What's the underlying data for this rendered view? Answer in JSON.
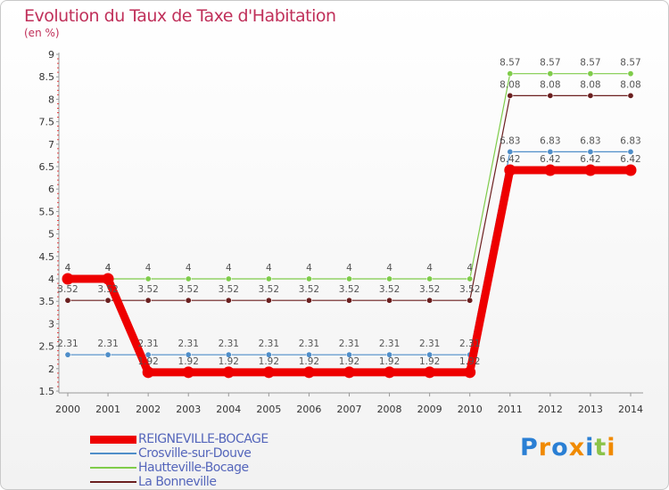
{
  "chart_data": {
    "type": "line",
    "title": "Evolution du Taux de Taxe d'Habitation",
    "subtitle": "(en %)",
    "xlabel": "",
    "ylabel": "",
    "categories": [
      "2000",
      "2001",
      "2002",
      "2003",
      "2004",
      "2005",
      "2006",
      "2007",
      "2008",
      "2009",
      "2010",
      "2011",
      "2012",
      "2013",
      "2014"
    ],
    "ylim": [
      1.5,
      9
    ],
    "yticks": [
      "1.5",
      "2",
      "2.5",
      "3",
      "3.5",
      "4",
      "4.5",
      "5",
      "5.5",
      "6",
      "6.5",
      "7",
      "7.5",
      "8",
      "8.5",
      "9"
    ],
    "grid": false,
    "legend_position": "bottom-left",
    "series": [
      {
        "name": "REIGNEVILLE-BOCAGE",
        "color": "#ee0000",
        "values": [
          4,
          4,
          1.92,
          1.92,
          1.92,
          1.92,
          1.92,
          1.92,
          1.92,
          1.92,
          1.92,
          6.42,
          6.42,
          6.42,
          6.42
        ],
        "labels": [
          "4",
          "4",
          "1.92",
          "1.92",
          "1.92",
          "1.92",
          "1.92",
          "1.92",
          "1.92",
          "1.92",
          "1.92",
          "6.42",
          "6.42",
          "6.42",
          "6.42"
        ]
      },
      {
        "name": "Crosville-sur-Douve",
        "color": "#4f8ec9",
        "values": [
          2.31,
          2.31,
          2.31,
          2.31,
          2.31,
          2.31,
          2.31,
          2.31,
          2.31,
          2.31,
          2.31,
          6.83,
          6.83,
          6.83,
          6.83
        ],
        "labels": [
          "2.31",
          "2.31",
          "2.31",
          "2.31",
          "2.31",
          "2.31",
          "2.31",
          "2.31",
          "2.31",
          "2.31",
          "2.31",
          "6.83",
          "6.83",
          "6.83",
          "6.83"
        ]
      },
      {
        "name": "Hautteville-Bocage",
        "color": "#7fcc4a",
        "values": [
          4,
          4,
          4,
          4,
          4,
          4,
          4,
          4,
          4,
          4,
          4,
          8.57,
          8.57,
          8.57,
          8.57
        ],
        "labels": [
          "4",
          "4",
          "4",
          "4",
          "4",
          "4",
          "4",
          "4",
          "4",
          "4",
          "4",
          "8.57",
          "8.57",
          "8.57",
          "8.57"
        ]
      },
      {
        "name": "La Bonneville",
        "color": "#6b1f1f",
        "values": [
          3.52,
          3.52,
          3.52,
          3.52,
          3.52,
          3.52,
          3.52,
          3.52,
          3.52,
          3.52,
          3.52,
          8.08,
          8.08,
          8.08,
          8.08
        ],
        "labels": [
          "3.52",
          "3.52",
          "3.52",
          "3.52",
          "3.52",
          "3.52",
          "3.52",
          "3.52",
          "3.52",
          "3.52",
          "3.52",
          "8.08",
          "8.08",
          "8.08",
          "8.08"
        ]
      }
    ]
  },
  "logo": {
    "text": "Proxiti",
    "letter_colors": [
      "#2a7fd4",
      "#f08a00",
      "#2a7fd4",
      "#f08a00",
      "#2a7fd4",
      "#8bc34a",
      "#f08a00"
    ]
  }
}
